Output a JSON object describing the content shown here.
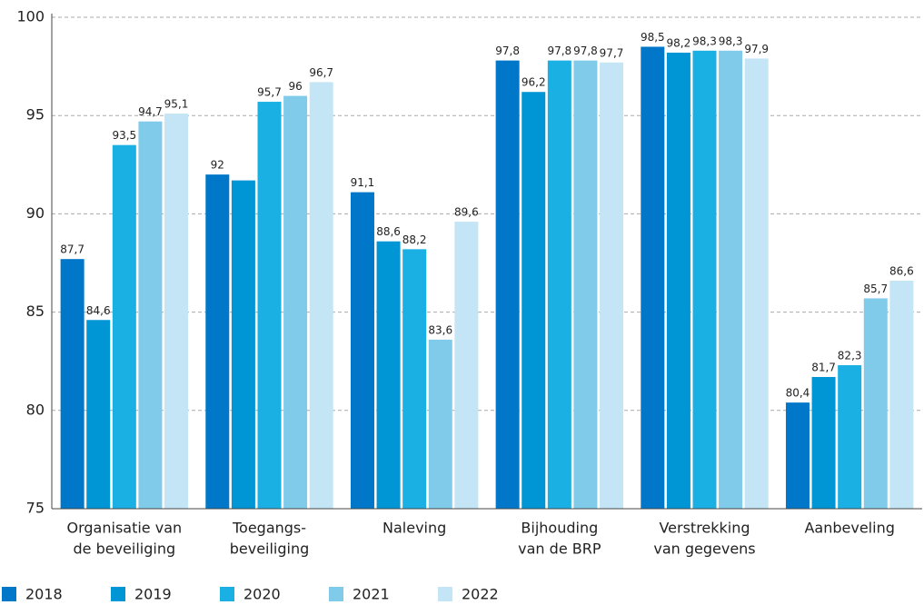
{
  "chart_data": {
    "type": "bar",
    "categories": [
      [
        "Organisatie van",
        "de beveiliging"
      ],
      [
        "Toegangs-",
        "beveiliging"
      ],
      [
        "Naleving"
      ],
      [
        "Bijhouding",
        "van de BRP"
      ],
      [
        "Verstrekking",
        "van gegevens"
      ],
      [
        "Aanbeveling"
      ]
    ],
    "series": [
      {
        "name": "2018",
        "color": "#0077c8",
        "values": [
          87.7,
          92,
          91.1,
          97.8,
          98.5,
          80.4
        ],
        "value_labels": [
          "87,7",
          "92",
          "91,1",
          "97,8",
          "98,5",
          "80,4"
        ]
      },
      {
        "name": "2019",
        "color": "#0095d5",
        "values": [
          84.6,
          91.7,
          88.6,
          96.2,
          98.2,
          81.7
        ],
        "value_labels": [
          "84,6",
          null,
          "88,6",
          "96,2",
          "98,2",
          "81,7"
        ]
      },
      {
        "name": "2020",
        "color": "#1ab0e3",
        "values": [
          93.5,
          95.7,
          88.2,
          97.8,
          98.3,
          82.3
        ],
        "value_labels": [
          "93,5",
          "95,7",
          "88,2",
          "97,8",
          "98,3",
          "82,3"
        ]
      },
      {
        "name": "2021",
        "color": "#80cbea",
        "values": [
          94.7,
          96,
          83.6,
          97.8,
          98.3,
          85.7
        ],
        "value_labels": [
          "94,7",
          "96",
          "83,6",
          "97,8",
          "98,3",
          "85,7"
        ]
      },
      {
        "name": "2022",
        "color": "#c4e5f6",
        "values": [
          95.1,
          96.7,
          89.6,
          97.7,
          97.9,
          86.6
        ],
        "value_labels": [
          "95,1",
          "96,7",
          "89,6",
          "97,7",
          "97,9",
          "86,6"
        ]
      }
    ],
    "ylim": [
      75,
      100
    ],
    "yticks": [
      75,
      80,
      85,
      90,
      95,
      100
    ],
    "grid": true,
    "legend": "bottom"
  }
}
